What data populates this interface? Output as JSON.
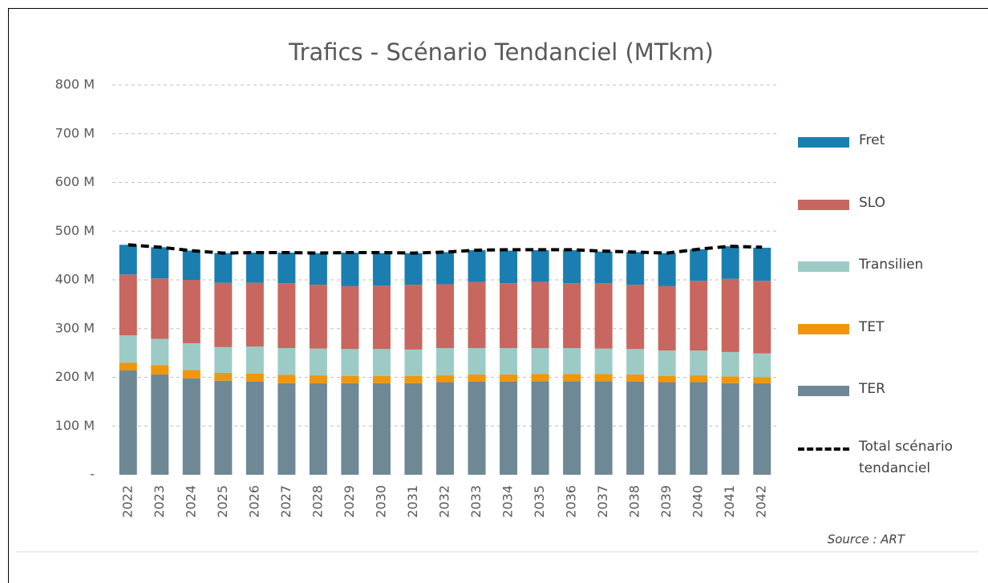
{
  "chart_data": {
    "type": "stacked-bar-line",
    "title": "Trafics - Scénario Tendanciel  (MTkm)",
    "source": "Source : ART",
    "categories": [
      "2022",
      "2023",
      "2024",
      "2025",
      "2026",
      "2027",
      "2028",
      "2029",
      "2030",
      "2031",
      "2032",
      "2033",
      "2034",
      "2035",
      "2036",
      "2037",
      "2038",
      "2039",
      "2040",
      "2041",
      "2042"
    ],
    "series": [
      {
        "name": "TER",
        "color": "#6e8896",
        "values": [
          214000000,
          206000000,
          198000000,
          193000000,
          191000000,
          188000000,
          188000000,
          188000000,
          188000000,
          188000000,
          190000000,
          191000000,
          191000000,
          192000000,
          192000000,
          192000000,
          191000000,
          190000000,
          190000000,
          188000000,
          188000000
        ]
      },
      {
        "name": "TET",
        "color": "#f0960a",
        "values": [
          16000000,
          19000000,
          17000000,
          16000000,
          17000000,
          17000000,
          16000000,
          15000000,
          15000000,
          15000000,
          14000000,
          15000000,
          15000000,
          15000000,
          15000000,
          15000000,
          15000000,
          13000000,
          14000000,
          14000000,
          12000000
        ]
      },
      {
        "name": "Transilien",
        "color": "#9ccbc6",
        "values": [
          56000000,
          54000000,
          55000000,
          53000000,
          55000000,
          55000000,
          55000000,
          55000000,
          55000000,
          54000000,
          56000000,
          54000000,
          54000000,
          53000000,
          53000000,
          52000000,
          52000000,
          52000000,
          51000000,
          50000000,
          49000000
        ]
      },
      {
        "name": "SLO",
        "color": "#c8675f",
        "values": [
          125000000,
          124000000,
          130000000,
          132000000,
          131000000,
          133000000,
          131000000,
          129000000,
          130000000,
          133000000,
          131000000,
          136000000,
          133000000,
          136000000,
          133000000,
          134000000,
          132000000,
          132000000,
          143000000,
          150000000,
          149000000
        ]
      },
      {
        "name": "Fret",
        "color": "#1a7fb0",
        "values": [
          61000000,
          64000000,
          60000000,
          61000000,
          62000000,
          63000000,
          65000000,
          69000000,
          67000000,
          65000000,
          66000000,
          65000000,
          67000000,
          65000000,
          68000000,
          65000000,
          67000000,
          68000000,
          65000000,
          67000000,
          68000000
        ]
      }
    ],
    "line": {
      "name": "Total scénario tendanciel",
      "color": "#000000",
      "values": [
        472000000,
        467000000,
        460000000,
        455000000,
        456000000,
        456000000,
        455000000,
        456000000,
        456000000,
        455000000,
        457000000,
        461000000,
        462000000,
        462000000,
        462000000,
        459000000,
        457000000,
        455000000,
        463000000,
        469000000,
        467000000
      ]
    },
    "ylim": [
      0,
      800000000
    ],
    "yticks": [
      {
        "value": 0,
        "label": "-"
      },
      {
        "value": 100000000,
        "label": "100 M"
      },
      {
        "value": 200000000,
        "label": "200 M"
      },
      {
        "value": 300000000,
        "label": "300 M"
      },
      {
        "value": 400000000,
        "label": "400 M"
      },
      {
        "value": 500000000,
        "label": "500 M"
      },
      {
        "value": 600000000,
        "label": "600 M"
      },
      {
        "value": 700000000,
        "label": "700 M"
      },
      {
        "value": 800000000,
        "label": "800 M"
      }
    ],
    "grid": true,
    "legend": "right"
  }
}
